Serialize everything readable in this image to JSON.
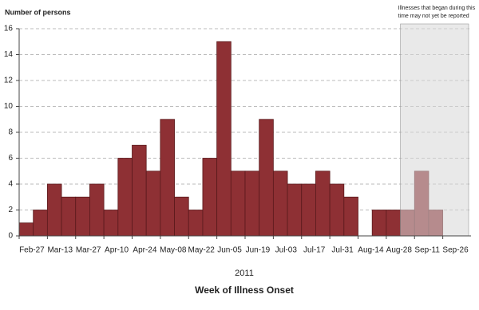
{
  "chart_data": {
    "type": "bar",
    "y_label": "Number of persons",
    "x_label": "Week of Illness Onset",
    "year_label": "2011",
    "categories": [
      "Feb-27",
      null,
      "Mar-13",
      null,
      "Mar-27",
      null,
      "Apr-10",
      null,
      "Apr-24",
      null,
      "May-08",
      null,
      "May-22",
      null,
      "Jun-05",
      null,
      "Jun-19",
      null,
      "Jul-03",
      null,
      "Jul-17",
      null,
      "Jul-31",
      null,
      "Aug-14",
      null,
      "Aug-28",
      null,
      "Sep-11",
      null,
      "Sep-26",
      null
    ],
    "values": [
      1,
      2,
      4,
      3,
      3,
      4,
      2,
      6,
      7,
      5,
      9,
      3,
      2,
      6,
      15,
      5,
      5,
      9,
      5,
      4,
      4,
      5,
      4,
      3,
      0,
      2,
      2,
      2,
      5,
      2,
      0,
      0
    ],
    "color": "#8e3034",
    "ylim": [
      0,
      16
    ],
    "yticks": [
      0,
      2,
      4,
      6,
      8,
      10,
      12,
      14,
      16
    ],
    "grid": true,
    "annotation": {
      "lines": [
        "Illnesses that began during this",
        "time may not yet be reported"
      ],
      "from_index": 27
    }
  }
}
